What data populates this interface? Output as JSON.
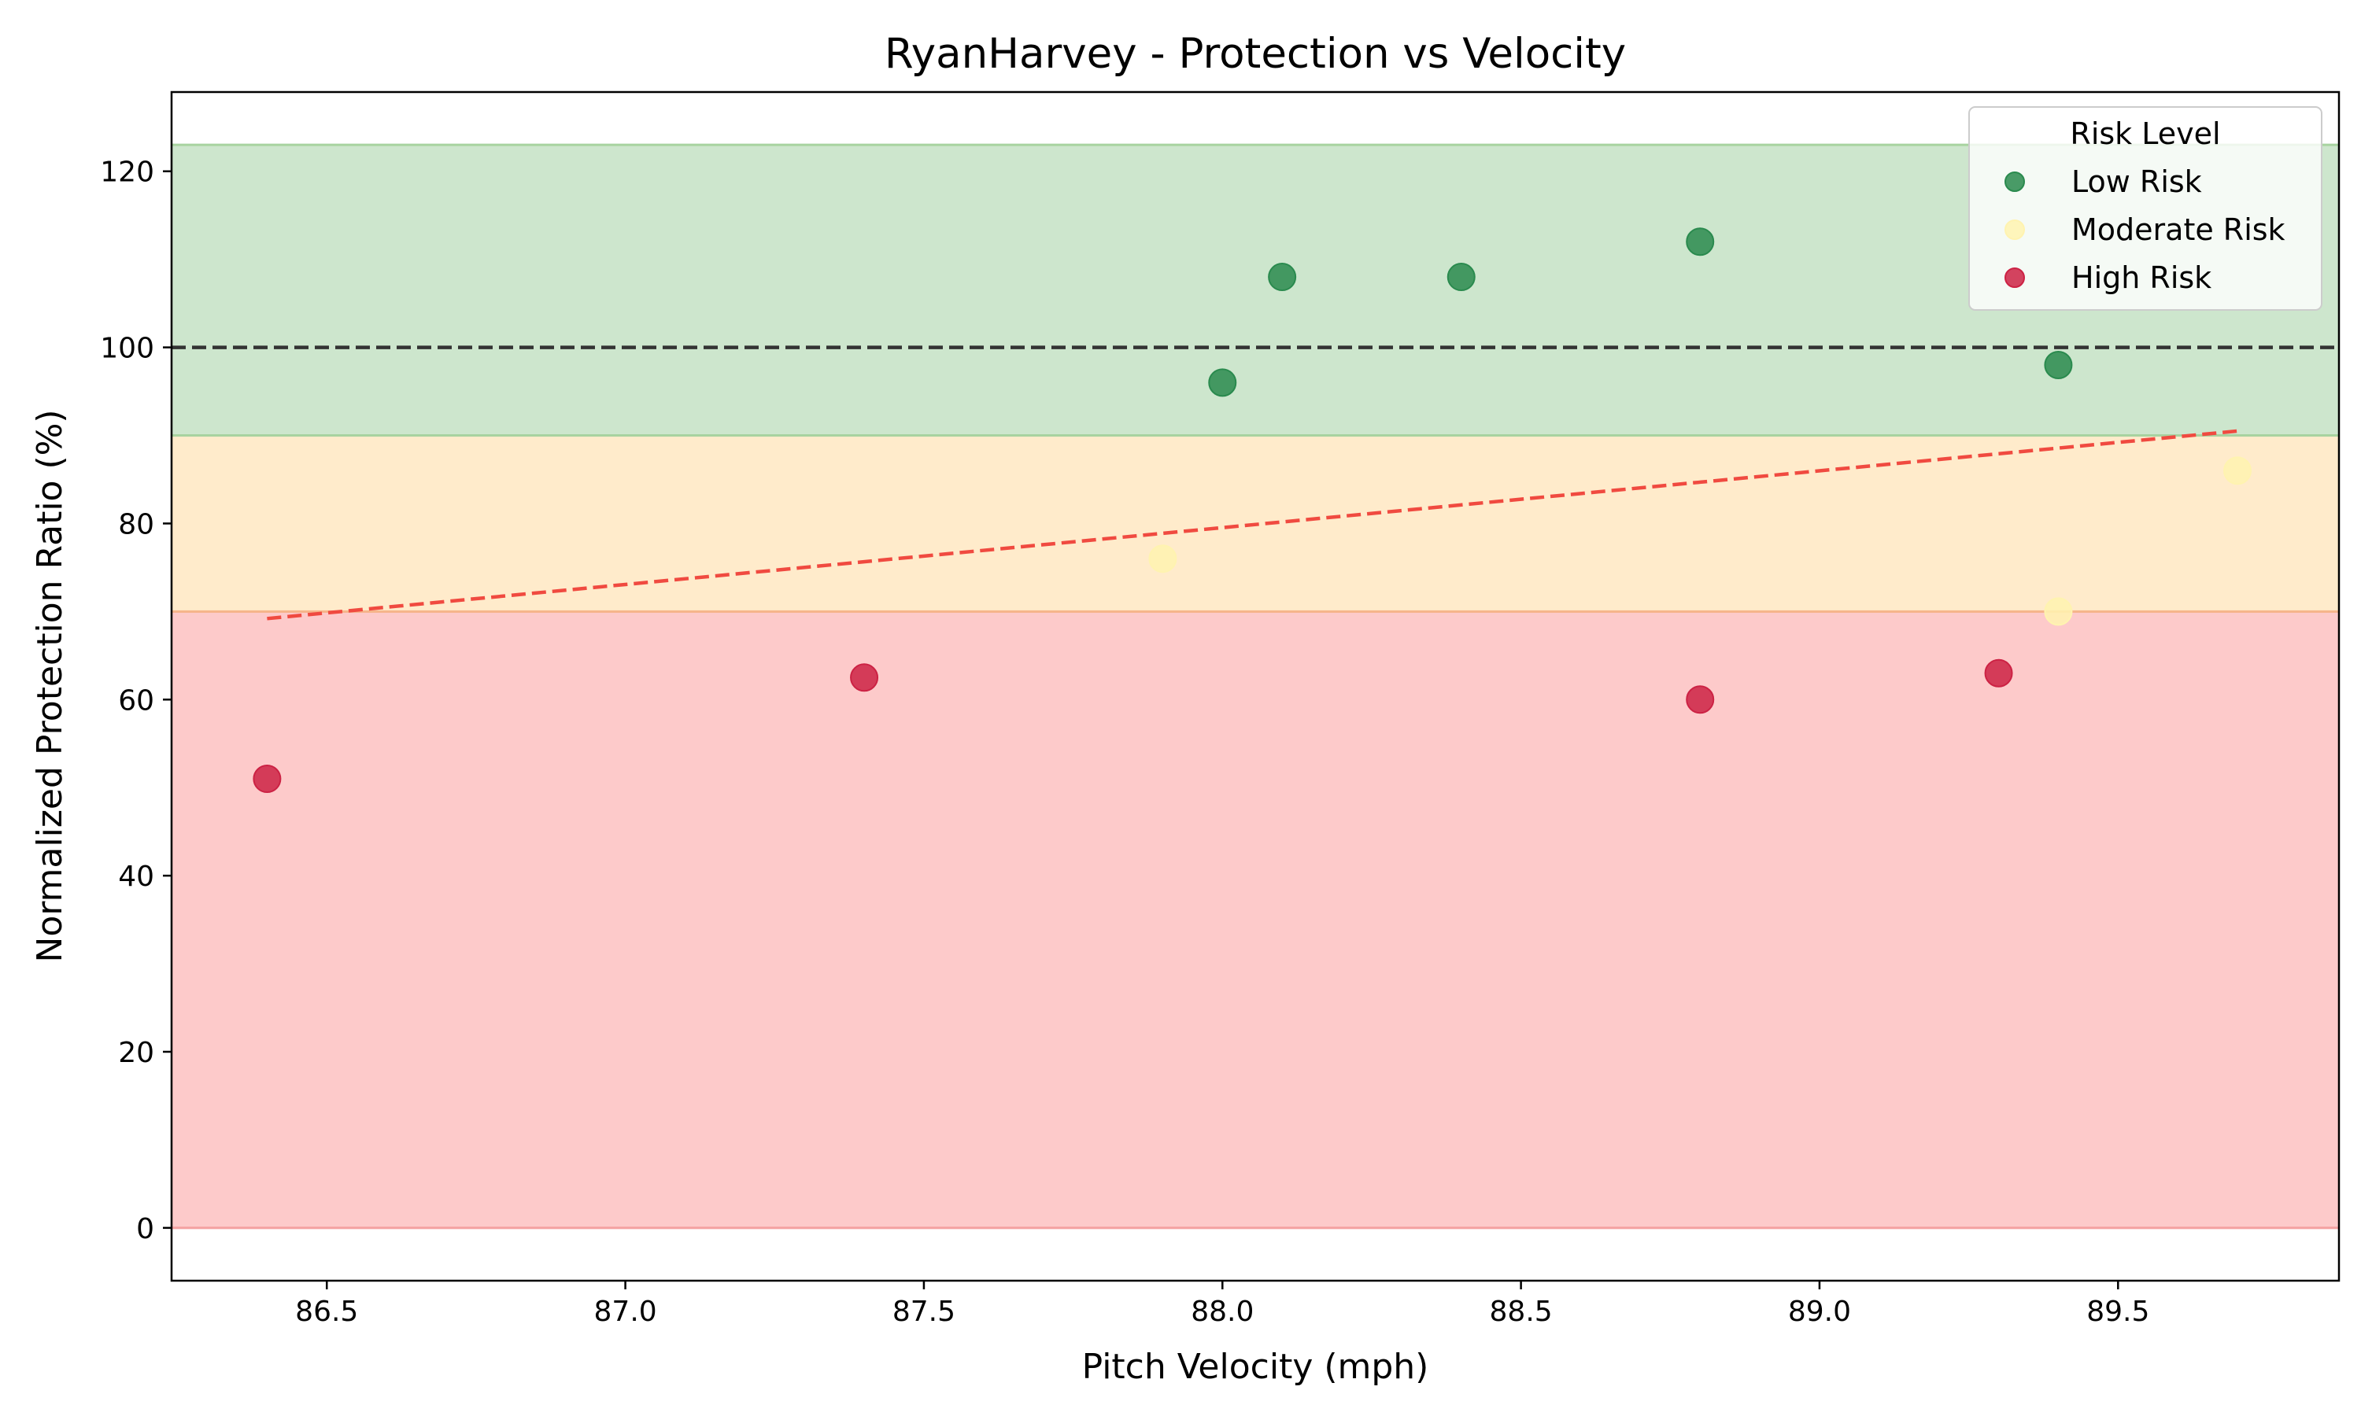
{
  "chart_data": {
    "type": "scatter",
    "title": "RyanHarvey - Protection vs Velocity",
    "xlabel": "Pitch Velocity (mph)",
    "ylabel": "Normalized Protection Ratio (%)",
    "xlim": [
      86.24,
      89.87
    ],
    "ylim": [
      -6,
      129
    ],
    "xticks": [
      86.5,
      87.0,
      87.5,
      88.0,
      88.5,
      89.0,
      89.5
    ],
    "xtick_labels": [
      "86.5",
      "87.0",
      "87.5",
      "88.0",
      "88.5",
      "89.0",
      "89.5"
    ],
    "yticks": [
      0,
      20,
      40,
      60,
      80,
      100,
      120
    ],
    "ytick_labels": [
      "0",
      "20",
      "40",
      "60",
      "80",
      "100",
      "120"
    ],
    "bands": [
      {
        "name": "High Risk zone",
        "from": 0,
        "to": 70,
        "color": "#fdcaca",
        "edge": "#f4a0a0"
      },
      {
        "name": "Moderate Risk zone",
        "from": 70,
        "to": 90,
        "color": "#ffebcb",
        "edge": "#f6b58a"
      },
      {
        "name": "Low Risk zone",
        "from": 90,
        "to": 123,
        "color": "#cde6cd",
        "edge": "#a8d3a0"
      }
    ],
    "reference_line": {
      "y": 100,
      "style": "dashed",
      "color": "#333333"
    },
    "trend_line": {
      "x": [
        86.4,
        89.7
      ],
      "y": [
        69.2,
        90.5
      ],
      "style": "dashed",
      "color": "#f04a40"
    },
    "series": [
      {
        "name": "Low Risk",
        "color": "#2a8a4e",
        "points": [
          {
            "x": 88.0,
            "y": 96
          },
          {
            "x": 88.1,
            "y": 108
          },
          {
            "x": 88.4,
            "y": 108
          },
          {
            "x": 88.8,
            "y": 112
          },
          {
            "x": 89.4,
            "y": 98
          }
        ]
      },
      {
        "name": "Moderate Risk",
        "color": "#fff3b0",
        "points": [
          {
            "x": 87.9,
            "y": 76
          },
          {
            "x": 89.4,
            "y": 70
          },
          {
            "x": 89.7,
            "y": 86
          }
        ]
      },
      {
        "name": "High Risk",
        "color": "#cc2244",
        "points": [
          {
            "x": 86.4,
            "y": 51
          },
          {
            "x": 87.4,
            "y": 62.5
          },
          {
            "x": 88.8,
            "y": 60
          },
          {
            "x": 89.3,
            "y": 63
          }
        ]
      }
    ],
    "legend": {
      "title": "Risk Level",
      "position": "top-right",
      "entries": [
        "Low Risk",
        "Moderate Risk",
        "High Risk"
      ]
    },
    "grid": false
  }
}
